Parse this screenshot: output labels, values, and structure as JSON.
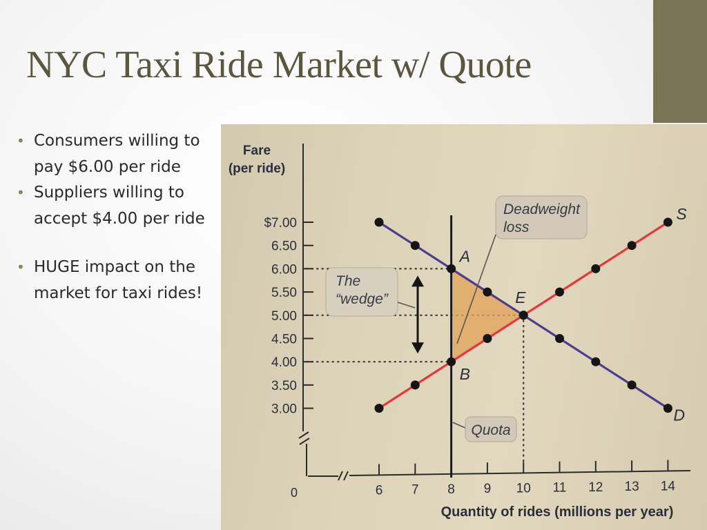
{
  "slide": {
    "title": "NYC Taxi Ride Market w/ Quote"
  },
  "bullets": [
    "Consumers willing to pay $6.00 per ride",
    "Suppliers willing to accept $4.00 per ride",
    "HUGE impact on the market for taxi rides!"
  ],
  "colors": {
    "accent_bar": "#7a7457",
    "title": "#5a5640",
    "demand": "#4b3c8c",
    "supply": "#e8353b",
    "deadweight_fill": "#e2a257"
  },
  "chart_data": {
    "type": "line",
    "xlabel": "Quantity of rides (millions per year)",
    "ylabel": "Fare (per ride)",
    "x_ticks": [
      6,
      7,
      8,
      9,
      10,
      11,
      12,
      13,
      14
    ],
    "y_tick_values": [
      3.0,
      3.5,
      4.0,
      4.5,
      5.0,
      5.5,
      6.0,
      6.5,
      7.0
    ],
    "y_tick_labels": [
      "3.00",
      "3.50",
      "4.00",
      "4.50",
      "5.00",
      "5.50",
      "6.00",
      "6.50",
      "$7.00"
    ],
    "origin_label": "0",
    "series": [
      {
        "name": "D",
        "values_x": [
          6,
          7,
          8,
          9,
          10,
          11,
          12,
          13,
          14
        ],
        "values_y": [
          7.0,
          6.5,
          6.0,
          5.5,
          5.0,
          4.5,
          4.0,
          3.5,
          3.0
        ]
      },
      {
        "name": "S",
        "values_x": [
          6,
          7,
          8,
          9,
          10,
          11,
          12,
          13,
          14
        ],
        "values_y": [
          3.0,
          3.5,
          4.0,
          4.5,
          5.0,
          5.5,
          6.0,
          6.5,
          7.0
        ]
      }
    ],
    "quota": {
      "x": 8,
      "label": "Quota"
    },
    "points": [
      {
        "label": "A",
        "x": 8,
        "y": 6.0
      },
      {
        "label": "B",
        "x": 8,
        "y": 4.0
      },
      {
        "label": "E",
        "x": 10,
        "y": 5.0
      }
    ],
    "annotations": {
      "deadweight": [
        "Deadweight",
        "loss"
      ],
      "wedge": [
        "The",
        "“wedge”"
      ]
    }
  }
}
